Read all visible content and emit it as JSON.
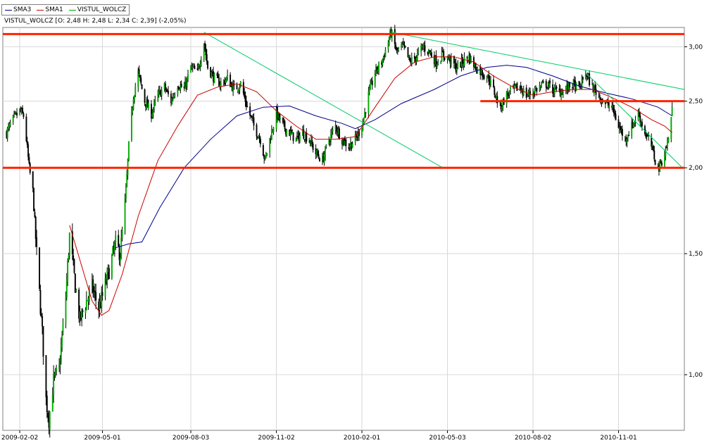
{
  "chart_data": {
    "type": "candlestick",
    "title": "",
    "info": "VISTUL_WOLCZ [O: 2,48  H: 2,48  L: 2,34  C: 2,39] (-2,05%)",
    "legend": [
      {
        "name": "SMA3",
        "color": "#00008b"
      },
      {
        "name": "SMA1",
        "color": "#cc0000"
      },
      {
        "name": "VISTUL_WOLCZ",
        "color": "#00aa00"
      }
    ],
    "y_scale": "log",
    "ylim": [
      0.83,
      3.2
    ],
    "y_ticks": [
      {
        "value": 1.0,
        "label": "1,00"
      },
      {
        "value": 1.5,
        "label": "1,50"
      },
      {
        "value": 2.0,
        "label": "2,00"
      },
      {
        "value": 2.5,
        "label": "2,50"
      },
      {
        "value": 3.0,
        "label": "3,00"
      }
    ],
    "xlim": [
      "2009-01-15",
      "2011-01-10"
    ],
    "x_ticks": [
      {
        "date": "2009-02-02",
        "label": "2009-02-02"
      },
      {
        "date": "2009-05-01",
        "label": "2009-05-01"
      },
      {
        "date": "2009-08-03",
        "label": "2009-08-03"
      },
      {
        "date": "2009-11-02",
        "label": "2009-11-02"
      },
      {
        "date": "2010-02-01",
        "label": "2010-02-01"
      },
      {
        "date": "2010-05-03",
        "label": "2010-05-03"
      },
      {
        "date": "2010-08-02",
        "label": "2010-08-02"
      },
      {
        "date": "2010-11-01",
        "label": "2010-11-01"
      }
    ],
    "grid": true,
    "legend_position": "top-left",
    "up_color": "#00aa00",
    "down_color": "#000000",
    "price_anchors": [
      [
        "2009-01-19",
        2.25
      ],
      [
        "2009-01-26",
        2.35
      ],
      [
        "2009-02-02",
        2.42
      ],
      [
        "2009-02-06",
        2.38
      ],
      [
        "2009-02-09",
        2.2
      ],
      [
        "2009-02-12",
        2.0
      ],
      [
        "2009-02-16",
        1.85
      ],
      [
        "2009-02-20",
        1.5
      ],
      [
        "2009-02-26",
        1.15
      ],
      [
        "2009-03-02",
        0.92
      ],
      [
        "2009-03-05",
        0.86
      ],
      [
        "2009-03-10",
        0.98
      ],
      [
        "2009-03-16",
        1.02
      ],
      [
        "2009-03-23",
        1.3
      ],
      [
        "2009-03-27",
        1.6
      ],
      [
        "2009-04-02",
        1.35
      ],
      [
        "2009-04-07",
        1.2
      ],
      [
        "2009-04-14",
        1.28
      ],
      [
        "2009-04-20",
        1.34
      ],
      [
        "2009-04-27",
        1.25
      ],
      [
        "2009-05-01",
        1.3
      ],
      [
        "2009-05-08",
        1.42
      ],
      [
        "2009-05-15",
        1.55
      ],
      [
        "2009-05-20",
        1.5
      ],
      [
        "2009-05-26",
        1.85
      ],
      [
        "2009-05-29",
        2.15
      ],
      [
        "2009-06-03",
        2.55
      ],
      [
        "2009-06-08",
        2.75
      ],
      [
        "2009-06-15",
        2.5
      ],
      [
        "2009-06-22",
        2.4
      ],
      [
        "2009-06-29",
        2.55
      ],
      [
        "2009-07-06",
        2.62
      ],
      [
        "2009-07-13",
        2.5
      ],
      [
        "2009-07-20",
        2.65
      ],
      [
        "2009-07-27",
        2.6
      ],
      [
        "2009-08-03",
        2.8
      ],
      [
        "2009-08-10",
        2.75
      ],
      [
        "2009-08-17",
        3.05
      ],
      [
        "2009-08-21",
        2.8
      ],
      [
        "2009-08-28",
        2.7
      ],
      [
        "2009-09-04",
        2.65
      ],
      [
        "2009-09-11",
        2.7
      ],
      [
        "2009-09-18",
        2.6
      ],
      [
        "2009-09-25",
        2.65
      ],
      [
        "2009-10-02",
        2.45
      ],
      [
        "2009-10-09",
        2.3
      ],
      [
        "2009-10-16",
        2.2
      ],
      [
        "2009-10-21",
        2.05
      ],
      [
        "2009-10-26",
        2.2
      ],
      [
        "2009-11-02",
        2.4
      ],
      [
        "2009-11-09",
        2.3
      ],
      [
        "2009-11-16",
        2.25
      ],
      [
        "2009-11-23",
        2.2
      ],
      [
        "2009-11-30",
        2.25
      ],
      [
        "2009-12-07",
        2.2
      ],
      [
        "2009-12-14",
        2.1
      ],
      [
        "2009-12-21",
        2.05
      ],
      [
        "2009-12-28",
        2.2
      ],
      [
        "2010-01-04",
        2.3
      ],
      [
        "2010-01-11",
        2.2
      ],
      [
        "2010-01-18",
        2.15
      ],
      [
        "2010-01-25",
        2.2
      ],
      [
        "2010-02-01",
        2.3
      ],
      [
        "2010-02-08",
        2.55
      ],
      [
        "2010-02-15",
        2.75
      ],
      [
        "2010-02-22",
        2.85
      ],
      [
        "2010-03-01",
        3.05
      ],
      [
        "2010-03-04",
        3.15
      ],
      [
        "2010-03-10",
        2.95
      ],
      [
        "2010-03-17",
        3.0
      ],
      [
        "2010-03-24",
        2.85
      ],
      [
        "2010-03-31",
        2.9
      ],
      [
        "2010-04-07",
        3.0
      ],
      [
        "2010-04-14",
        2.95
      ],
      [
        "2010-04-21",
        2.85
      ],
      [
        "2010-04-28",
        2.92
      ],
      [
        "2010-05-05",
        2.88
      ],
      [
        "2010-05-12",
        2.8
      ],
      [
        "2010-05-19",
        2.85
      ],
      [
        "2010-05-26",
        2.9
      ],
      [
        "2010-06-02",
        2.8
      ],
      [
        "2010-06-09",
        2.75
      ],
      [
        "2010-06-16",
        2.7
      ],
      [
        "2010-06-23",
        2.55
      ],
      [
        "2010-06-28",
        2.45
      ],
      [
        "2010-07-05",
        2.55
      ],
      [
        "2010-07-12",
        2.6
      ],
      [
        "2010-07-19",
        2.62
      ],
      [
        "2010-07-26",
        2.55
      ],
      [
        "2010-08-02",
        2.58
      ],
      [
        "2010-08-09",
        2.62
      ],
      [
        "2010-08-16",
        2.65
      ],
      [
        "2010-08-23",
        2.6
      ],
      [
        "2010-08-30",
        2.58
      ],
      [
        "2010-09-06",
        2.6
      ],
      [
        "2010-09-13",
        2.65
      ],
      [
        "2010-09-20",
        2.6
      ],
      [
        "2010-09-27",
        2.75
      ],
      [
        "2010-10-04",
        2.62
      ],
      [
        "2010-10-11",
        2.55
      ],
      [
        "2010-10-18",
        2.48
      ],
      [
        "2010-10-25",
        2.45
      ],
      [
        "2010-11-01",
        2.3
      ],
      [
        "2010-11-08",
        2.2
      ],
      [
        "2010-11-15",
        2.3
      ],
      [
        "2010-11-22",
        2.4
      ],
      [
        "2010-11-29",
        2.25
      ],
      [
        "2010-12-06",
        2.15
      ],
      [
        "2010-12-10",
        2.05
      ],
      [
        "2010-12-14",
        2.0
      ],
      [
        "2010-12-20",
        2.1
      ],
      [
        "2010-12-24",
        2.2
      ],
      [
        "2010-12-28",
        2.45
      ]
    ],
    "sma_red": [
      [
        "2009-03-27",
        1.65
      ],
      [
        "2009-04-20",
        1.28
      ],
      [
        "2009-04-30",
        1.22
      ],
      [
        "2009-05-08",
        1.24
      ],
      [
        "2009-05-22",
        1.4
      ],
      [
        "2009-06-08",
        1.7
      ],
      [
        "2009-06-29",
        2.05
      ],
      [
        "2009-07-20",
        2.3
      ],
      [
        "2009-08-10",
        2.55
      ],
      [
        "2009-08-31",
        2.62
      ],
      [
        "2009-09-21",
        2.65
      ],
      [
        "2009-10-12",
        2.58
      ],
      [
        "2009-11-02",
        2.42
      ],
      [
        "2009-11-23",
        2.3
      ],
      [
        "2009-12-14",
        2.2
      ],
      [
        "2010-01-04",
        2.2
      ],
      [
        "2010-01-25",
        2.22
      ],
      [
        "2010-02-15",
        2.45
      ],
      [
        "2010-03-08",
        2.7
      ],
      [
        "2010-03-29",
        2.85
      ],
      [
        "2010-04-19",
        2.9
      ],
      [
        "2010-05-10",
        2.9
      ],
      [
        "2010-05-31",
        2.85
      ],
      [
        "2010-06-21",
        2.72
      ],
      [
        "2010-07-12",
        2.62
      ],
      [
        "2010-08-02",
        2.55
      ],
      [
        "2010-08-23",
        2.58
      ],
      [
        "2010-09-13",
        2.6
      ],
      [
        "2010-10-04",
        2.6
      ],
      [
        "2010-10-25",
        2.53
      ],
      [
        "2010-11-15",
        2.45
      ],
      [
        "2010-12-06",
        2.35
      ],
      [
        "2010-12-20",
        2.3
      ],
      [
        "2010-12-28",
        2.25
      ]
    ],
    "sma_blue": [
      [
        "2009-05-15",
        1.53
      ],
      [
        "2009-05-29",
        1.55
      ],
      [
        "2009-06-12",
        1.56
      ],
      [
        "2009-07-01",
        1.75
      ],
      [
        "2009-07-27",
        2.0
      ],
      [
        "2009-08-24",
        2.2
      ],
      [
        "2009-09-21",
        2.38
      ],
      [
        "2009-10-19",
        2.45
      ],
      [
        "2009-11-16",
        2.46
      ],
      [
        "2009-12-14",
        2.38
      ],
      [
        "2010-01-11",
        2.32
      ],
      [
        "2010-01-25",
        2.28
      ],
      [
        "2010-02-15",
        2.35
      ],
      [
        "2010-03-15",
        2.48
      ],
      [
        "2010-04-19",
        2.6
      ],
      [
        "2010-05-17",
        2.72
      ],
      [
        "2010-06-14",
        2.8
      ],
      [
        "2010-07-05",
        2.82
      ],
      [
        "2010-07-26",
        2.8
      ],
      [
        "2010-08-23",
        2.72
      ],
      [
        "2010-09-20",
        2.63
      ],
      [
        "2010-10-18",
        2.57
      ],
      [
        "2010-11-15",
        2.52
      ],
      [
        "2010-12-13",
        2.45
      ],
      [
        "2010-12-28",
        2.38
      ]
    ],
    "trendlines": [
      {
        "color": "#00cc66",
        "points": [
          [
            "2009-08-17",
            3.15
          ],
          [
            "2010-04-28",
            2.0
          ]
        ]
      },
      {
        "color": "#00cc66",
        "points": [
          [
            "2010-03-04",
            3.15
          ],
          [
            "2011-01-10",
            2.6
          ]
        ]
      },
      {
        "color": "#00cc66",
        "points": [
          [
            "2010-09-27",
            2.75
          ],
          [
            "2011-01-08",
            2.0
          ]
        ]
      }
    ],
    "levels": [
      {
        "value": 3.13,
        "color": "#ff2200",
        "from": "2009-01-15",
        "to": "2011-01-10"
      },
      {
        "value": 2.0,
        "color": "#ff2200",
        "from": "2009-01-15",
        "to": "2011-01-10"
      },
      {
        "value": 2.5,
        "color": "#ff2200",
        "from": "2010-06-07",
        "to": "2011-01-10"
      }
    ]
  }
}
